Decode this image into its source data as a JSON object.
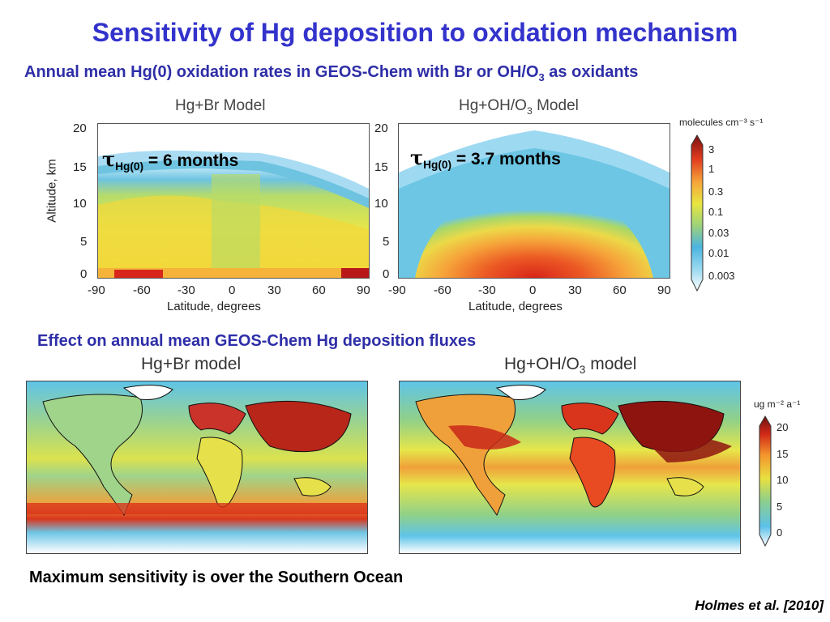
{
  "title": "Sensitivity of Hg deposition to oxidation mechanism",
  "subtitle": {
    "main": "Annual mean Hg(0) oxidation rates in GEOS-Chem with Br or OH/O",
    "sub": "3",
    "tail": " as oxidants"
  },
  "top_panels": {
    "left_title": "Hg+Br Model",
    "right_title_main": "Hg+OH/O",
    "right_title_sub": "3",
    "right_title_tail": " Model",
    "ylabel": "Altitude, km",
    "xlabel": "Latitude, degrees",
    "yticks": [
      "20",
      "15",
      "10",
      "5",
      "0"
    ],
    "xticks": [
      "-90",
      "-60",
      "-30",
      "0",
      "30",
      "60",
      "90"
    ],
    "tau_left": {
      "sym": "τ",
      "sub": "Hg(0)",
      "text": " = 6 months"
    },
    "tau_right": {
      "sym": "τ",
      "sub": "Hg(0)",
      "text": " = 3.7 months"
    },
    "colorbar": {
      "unit": "molecules cm⁻³ s⁻¹",
      "labels": [
        "3",
        "1",
        "0.3",
        "0.1",
        "0.03",
        "0.01",
        "0.003"
      ]
    }
  },
  "section_title": "Effect on annual mean GEOS-Chem Hg deposition fluxes",
  "maps": {
    "left_title": "Hg+Br model",
    "right_title_main": "Hg+OH/O",
    "right_title_sub": "3",
    "right_title_tail": " model",
    "colorbar": {
      "unit": "ug m⁻² a⁻¹",
      "labels": [
        "20",
        "15",
        "10",
        "5",
        "0"
      ]
    }
  },
  "footer": "Maximum sensitivity is over the Southern Ocean",
  "citation": "Holmes et al. [2010]",
  "colors": {
    "title": "#3333cc",
    "subtitle": "#2e2ea8"
  }
}
